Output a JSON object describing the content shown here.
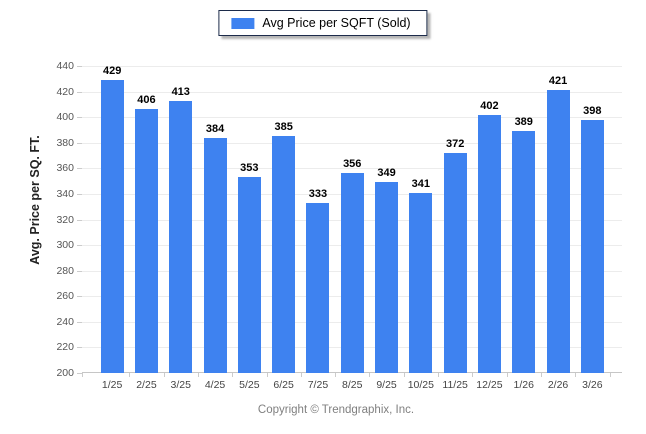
{
  "legend": {
    "label": "Avg Price per SQFT (Sold)"
  },
  "chart_data": {
    "type": "bar",
    "title": "",
    "series_name": "Avg Price per SQFT (Sold)",
    "categories": [
      "1/25",
      "2/25",
      "3/25",
      "4/25",
      "5/25",
      "6/25",
      "7/25",
      "8/25",
      "9/25",
      "10/25",
      "11/25",
      "12/25",
      "1/26",
      "2/26",
      "3/26"
    ],
    "values": [
      429,
      406,
      413,
      384,
      353,
      385,
      333,
      356,
      349,
      341,
      372,
      402,
      389,
      421,
      398
    ],
    "xlabel": "",
    "ylabel": "Avg. Price per SQ. FT.",
    "ylim": [
      200,
      440
    ],
    "ytick_step": 20,
    "grid": true,
    "legend_position": "top",
    "value_labels": true,
    "colors": {
      "bar": "#3E82F0",
      "grid": "#ececec",
      "axis": "#c6c6c6",
      "tick": "#cccccc",
      "y_tick_label": "#555555",
      "x_tick_label": "#444444",
      "value_label": "#000000",
      "footer": "#808080"
    }
  },
  "footer": {
    "text": "Copyright © Trendgraphix, Inc."
  }
}
